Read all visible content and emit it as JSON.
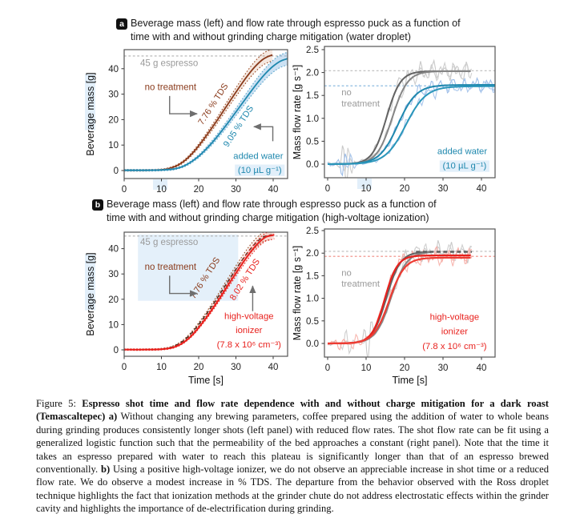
{
  "panel_a": {
    "badge": "a",
    "line1": "Beverage mass (left) and flow rate through espresso puck as a function of",
    "line2": "time with and without grinding charge mitigation (water droplet)"
  },
  "panel_b": {
    "badge": "b",
    "line1": "Beverage mass (left) and flow rate through espresso puck as a function of",
    "line2": "time with and without grinding charge mitigation (high-voltage ionization)"
  },
  "caption": {
    "prefix": "Figure 5: ",
    "bold_a": "Espresso shot time and flow rate dependence with and without charge mitigation for a dark roast (Temascaltepec) a)",
    "text_a": " Without changing any brewing parameters, coffee prepared using the addition of water to whole beans during grinding produces consistently longer shots (left panel) with reduced flow rates. The shot flow rate can be fit using a generalized logistic function such that the permeability of the bed approaches a constant (right panel). Note that the time it takes an espresso prepared with water to reach this plateau is significantly longer than that of an espresso brewed conventionally. ",
    "bold_b": "b)",
    "text_b": " Using a positive high-voltage ionizer, we do not observe an appreciable increase in shot time or a reduced flow rate. We do observe a modest increase in % TDS. The departure from the behavior observed with the Ross droplet technique highlights the fact that ionization methods at the grinder chute do not address electrostatic effects within the grinder cavity and highlights the importance of de-electrification during grinding."
  },
  "colors": {
    "brown": "#8a3b1c",
    "teal": "#1f88ae",
    "red": "#e8211d",
    "gray_fit": "#636363",
    "gray_fit2": "#858585",
    "gray_noise": "#c9c9c9",
    "blue_noise": "#9dbde8",
    "red_noise": "#f6aba4",
    "gray_text": "#9a9a9a",
    "arrow_gray": "#6e6e6e",
    "ref_gray": "#b5b5b5",
    "ref_blue": "#7fb2dc",
    "ref_red": "#f08a80",
    "highlight_blue": "#d6e8f8"
  },
  "chart_data": [
    {
      "key": "beverage_mass_a",
      "type": "line",
      "xlabel": "",
      "ylabel": "Beverage mass [g]",
      "xlim": [
        0,
        43.9
      ],
      "ylim": [
        -3.1,
        47.5
      ],
      "xticks": [
        0,
        10,
        20,
        30,
        40
      ],
      "xtick_labels": [
        "0",
        "10",
        "20",
        "30",
        "40"
      ],
      "yticks": [
        0,
        10,
        20,
        30,
        40
      ],
      "ytick_labels": [
        "0",
        "10",
        "20",
        "30",
        "40"
      ],
      "ref_lines": [
        {
          "y": 45,
          "color": "#b0b0b0"
        }
      ],
      "highlight_rects": [],
      "series": [
        {
          "name": "no treatment (7.76 % TDS)",
          "kind": "band_center",
          "color": "#8a3b1c",
          "width": 1.8,
          "x": [
            0,
            6,
            10,
            12,
            13.5,
            15,
            16.5,
            18,
            19.5,
            21,
            23,
            25,
            27,
            29,
            31,
            33,
            35,
            37,
            38.5,
            39.8
          ],
          "y": [
            0.1,
            0.1,
            0.3,
            0.8,
            1.5,
            2.6,
            4.2,
            6.3,
            8.8,
            11.6,
            15.6,
            19.8,
            24.2,
            28.6,
            32.9,
            37.0,
            40.6,
            43.4,
            44.7,
            45.4
          ],
          "band": {
            "fu": 1.045,
            "fl": 0.955,
            "off": 0.3,
            "fill": "rgba(190,110,60,0.16)",
            "edge": "#9c4a24"
          }
        },
        {
          "name": "added water (9.05 % TDS)",
          "kind": "band_center",
          "color": "#1f88ae",
          "width": 1.8,
          "x": [
            0,
            6,
            10,
            13,
            15,
            16.5,
            18,
            20,
            22,
            24,
            26,
            28,
            30,
            32,
            34,
            36,
            38,
            40,
            42,
            44.6
          ],
          "y": [
            0.1,
            0.1,
            0.2,
            0.5,
            1.2,
            2.1,
            3.4,
            5.6,
            8.4,
            11.6,
            15.2,
            19.0,
            23.0,
            27.0,
            31.0,
            34.8,
            38.2,
            41.0,
            43.0,
            44.3
          ],
          "band": {
            "fu": 1.05,
            "fl": 0.95,
            "off": 0.3,
            "fill": "rgba(110,170,220,0.35)",
            "edge": "#5aa7cc"
          }
        }
      ],
      "annotations": [
        {
          "text": "45 g espresso",
          "x": 4.3,
          "y": 41.0,
          "color": "#9a9a9a",
          "anchor": "start",
          "size": 11.5
        },
        {
          "text": "no treatment",
          "x": 5.5,
          "y": 31.6,
          "color": "#8a3b1c",
          "anchor": "start",
          "size": 11.5
        },
        {
          "text": "7.76 % TDS",
          "x": 24.5,
          "y": 25.5,
          "color": "#8a3b1c",
          "size": 11,
          "rotate": -57
        },
        {
          "text": "9.05 % TDS",
          "x": 31.3,
          "y": 16.8,
          "color": "#1f88ae",
          "size": 11,
          "rotate": -57
        },
        {
          "text": "added water",
          "x": 36.0,
          "y": 4.6,
          "color": "#1f88ae",
          "size": 11.3
        },
        {
          "text": "(10 µL g⁻¹)",
          "x": 36.4,
          "y": -0.9,
          "color": "#1f88ae",
          "size": 11.3,
          "hl": true
        }
      ],
      "arrows": [
        {
          "points": [
            [
              12.2,
              29.3
            ],
            [
              12.2,
              22.3
            ],
            [
              19.6,
              22.3
            ]
          ]
        },
        {
          "points": [
            [
              39.9,
              11.5
            ],
            [
              39.9,
              17.2
            ],
            [
              34.8,
              17.2
            ]
          ]
        }
      ]
    },
    {
      "key": "flow_rate_a",
      "type": "line",
      "xlabel": "",
      "ylabel": "Mass flow rate [g s⁻¹]",
      "xlim": [
        0,
        43.5
      ],
      "ylim": [
        -0.3,
        2.57
      ],
      "xticks": [
        0,
        10,
        20,
        30,
        40
      ],
      "xtick_labels": [
        "0",
        "10",
        "20",
        "30",
        "40"
      ],
      "yticks": [
        0,
        0.5,
        1,
        1.5,
        2,
        2.5
      ],
      "ytick_labels": [
        "0.0",
        "0.5",
        "1.0",
        "1.5",
        "2.0",
        "2.5"
      ],
      "ref_lines": [
        {
          "y": 2.04,
          "color": "#bbbbbb"
        },
        {
          "y": 1.71,
          "color": "#7fb2dc"
        }
      ],
      "highlight_rects": [],
      "series": [
        {
          "name": "no treatment raw 1",
          "kind": "noisy",
          "L": 2.03,
          "k": 0.55,
          "t0": 15.3,
          "tmax": 37.5,
          "seed": 1,
          "amp": 0.19,
          "bump": {
            "t": 4.5,
            "a": 0.5
          },
          "color": "#c9c9c9",
          "width": 1.1
        },
        {
          "name": "no treatment raw 2",
          "kind": "noisy",
          "L": 2.03,
          "k": 0.5,
          "t0": 16.8,
          "tmax": 37.5,
          "seed": 2,
          "amp": 0.17,
          "bump": {
            "t": 5.5,
            "a": 0.35
          },
          "color": "#cfcfcf",
          "width": 1.1
        },
        {
          "name": "added water raw 1",
          "kind": "noisy",
          "L": 1.73,
          "k": 0.42,
          "t0": 18.3,
          "tmax": 44,
          "seed": 3,
          "amp": 0.13,
          "bump": {
            "t": 4,
            "a": 0.3
          },
          "color": "#9dbde8",
          "width": 1.1
        },
        {
          "name": "added water raw 2",
          "kind": "noisy",
          "L": 1.7,
          "k": 0.38,
          "t0": 20.3,
          "tmax": 44,
          "seed": 4,
          "amp": 0.12,
          "bump": {
            "t": 6,
            "a": 0.2
          },
          "color": "#aac7ec",
          "width": 1.1
        },
        {
          "name": "no treatment fit 1",
          "kind": "logistic",
          "L": 2.03,
          "k": 0.55,
          "t0": 15.3,
          "tmax": 37.5,
          "color": "#636363",
          "width": 2
        },
        {
          "name": "no treatment fit 2",
          "kind": "logistic",
          "L": 2.03,
          "k": 0.5,
          "t0": 16.8,
          "tmax": 37.5,
          "color": "#858585",
          "width": 2
        },
        {
          "name": "added water fit 1",
          "kind": "logistic",
          "L": 1.73,
          "k": 0.42,
          "t0": 18.3,
          "tmax": 44,
          "color": "#1f88ae",
          "width": 2
        },
        {
          "name": "added water fit 2",
          "kind": "logistic",
          "L": 1.7,
          "k": 0.38,
          "t0": 20.3,
          "tmax": 44,
          "color": "#2a96ba",
          "width": 2
        }
      ],
      "annotations": [
        {
          "text": "no",
          "x": 3.6,
          "y": 1.5,
          "color": "#9a9a9a",
          "anchor": "start",
          "size": 11.3
        },
        {
          "text": "treatment",
          "x": 3.6,
          "y": 1.26,
          "color": "#9a9a9a",
          "anchor": "start",
          "size": 11.3
        },
        {
          "text": "added water",
          "x": 35.0,
          "y": 0.22,
          "color": "#1f88ae",
          "size": 11.3
        },
        {
          "text": "(10 µL g⁻¹)",
          "x": 35.6,
          "y": -0.1,
          "color": "#1f88ae",
          "size": 11.3,
          "hl": true
        }
      ],
      "arrows": []
    },
    {
      "key": "beverage_mass_b",
      "type": "line",
      "xlabel": "Time [s]",
      "ylabel": "Beverage mass [g]",
      "xlim": [
        0,
        43.9
      ],
      "ylim": [
        -3.1,
        46.5
      ],
      "xticks": [
        0,
        10,
        20,
        30,
        40
      ],
      "xtick_labels": [
        "0",
        "10",
        "20",
        "30",
        "40"
      ],
      "yticks": [
        0,
        10,
        20,
        30,
        40
      ],
      "ytick_labels": [
        "0",
        "10",
        "20",
        "30",
        "40"
      ],
      "ref_lines": [
        {
          "y": 45,
          "color": "#b0b0b0"
        }
      ],
      "highlight_rects": [
        {
          "x1": 3.7,
          "y1": 19.4,
          "x2": 30.6,
          "y2": 45.6,
          "color": "#d6e8f8",
          "opacity": 0.65
        }
      ],
      "series": [
        {
          "name": "no treatment reference (7.76 % TDS)",
          "kind": "band_center",
          "color": "#4a2c20",
          "width": 1.5,
          "dash": "5,3",
          "x": [
            0,
            5.3,
            9.3,
            11.8,
            13.3,
            14.8,
            16.3,
            17.8,
            19.3,
            21.3,
            23.3,
            25.3,
            27.3,
            29.3,
            31.3,
            33.3,
            35.3,
            37.3,
            38.8,
            39.6
          ],
          "y": [
            0.1,
            0.1,
            0.25,
            0.7,
            1.4,
            2.5,
            4.1,
            6.2,
            8.8,
            12.6,
            16.8,
            21.2,
            25.8,
            30.3,
            34.7,
            38.8,
            42.2,
            44.6,
            45.2,
            45.5
          ],
          "band": {
            "fu": 1.035,
            "fl": 0.965,
            "off": 0.25,
            "fill": "rgba(190,110,60,0.10)",
            "edge": "#9c4a24"
          }
        },
        {
          "name": "high-voltage ionizer (8.02 % TDS)",
          "kind": "band_center",
          "color": "#e8211d",
          "width": 2,
          "x": [
            0,
            6,
            10,
            12.5,
            14,
            15.5,
            17,
            18.5,
            20,
            22,
            24,
            26,
            28,
            30,
            32,
            34,
            36,
            38,
            39.5,
            40.3
          ],
          "y": [
            0.1,
            0.1,
            0.25,
            0.7,
            1.4,
            2.5,
            4.1,
            6.2,
            8.8,
            12.6,
            16.8,
            21.2,
            25.8,
            30.3,
            34.7,
            38.8,
            42.2,
            44.6,
            45.2,
            45.5
          ],
          "band": {
            "fu": 1.03,
            "fl": 0.97,
            "off": 0.25,
            "fill": "rgba(240,90,80,0.18)",
            "edge": "#e8211d"
          }
        }
      ],
      "annotations": [
        {
          "text": "45 g espresso",
          "x": 4.3,
          "y": 41.5,
          "color": "#9a9a9a",
          "anchor": "start",
          "size": 11.5
        },
        {
          "text": "no treatment",
          "x": 5.5,
          "y": 31.6,
          "color": "#8a3b1c",
          "anchor": "start",
          "size": 11.5
        },
        {
          "text": "7.76 % TDS",
          "x": 22.3,
          "y": 27.8,
          "color": "#8a3b1c",
          "size": 11,
          "rotate": -57
        },
        {
          "text": "8.02 % TDS",
          "x": 33.0,
          "y": 27.2,
          "color": "#e8211d",
          "size": 11,
          "rotate": -57
        },
        {
          "text": "high-voltage",
          "x": 33.5,
          "y": 12.2,
          "color": "#e8211d",
          "size": 11.3
        },
        {
          "text": "ionizer",
          "x": 33.5,
          "y": 6.6,
          "color": "#e8211d",
          "size": 11.3
        },
        {
          "text": "(7.8 x 10⁶ cm⁻³)",
          "x": 33.5,
          "y": 0.9,
          "color": "#e8211d",
          "size": 11.3
        }
      ],
      "arrows": [
        {
          "points": [
            [
              12.2,
              29.3
            ],
            [
              12.2,
              22.3
            ],
            [
              19.6,
              22.3
            ]
          ]
        },
        {
          "points": [
            [
              34.5,
              15.3
            ],
            [
              34.5,
              25.3
            ]
          ]
        }
      ]
    },
    {
      "key": "flow_rate_b",
      "type": "line",
      "xlabel": "Time [s]",
      "ylabel": "Mass flow rate [g s⁻¹]",
      "xlim": [
        0,
        43.5
      ],
      "ylim": [
        -0.3,
        2.53
      ],
      "xticks": [
        0,
        10,
        20,
        30,
        40
      ],
      "xtick_labels": [
        "0",
        "10",
        "20",
        "30",
        "40"
      ],
      "yticks": [
        0,
        0.5,
        1,
        1.5,
        2,
        2.5
      ],
      "ytick_labels": [
        "0.0",
        "0.5",
        "1.0",
        "1.5",
        "2.0",
        "2.5"
      ],
      "ref_lines": [
        {
          "y": 2.04,
          "color": "#bbbbbb"
        },
        {
          "y": 1.93,
          "color": "#f08a80"
        }
      ],
      "highlight_rects": [],
      "series": [
        {
          "name": "no treatment raw 1",
          "kind": "noisy",
          "L": 2.03,
          "k": 0.55,
          "t0": 15.3,
          "tmax": 37.5,
          "seed": 5,
          "amp": 0.18,
          "bump": {
            "t": 10.5,
            "a": 0.55
          },
          "color": "#c9c9c9",
          "width": 1.1
        },
        {
          "name": "no treatment raw 2",
          "kind": "noisy",
          "L": 2.03,
          "k": 0.5,
          "t0": 16.5,
          "tmax": 37.5,
          "seed": 6,
          "amp": 0.16,
          "bump": {
            "t": 5,
            "a": 0.3
          },
          "color": "#cfcfcf",
          "width": 1.1
        },
        {
          "name": "ionizer raw 1",
          "kind": "noisy",
          "L": 1.95,
          "k": 0.6,
          "t0": 14.8,
          "tmax": 37.5,
          "seed": 7,
          "amp": 0.15,
          "bump": {
            "t": 3,
            "a": 0.15
          },
          "color": "#f6aba4",
          "width": 1.1
        },
        {
          "name": "ionizer raw 2",
          "kind": "noisy",
          "L": 1.91,
          "k": 0.5,
          "t0": 16.0,
          "tmax": 37.5,
          "seed": 8,
          "amp": 0.14,
          "bump": {
            "t": 7,
            "a": 0.2
          },
          "color": "#f8b7b0",
          "width": 1.1
        },
        {
          "name": "no treatment fit 1",
          "kind": "logistic",
          "L": 2.03,
          "k": 0.55,
          "t0": 15.3,
          "tmax": 27,
          "color": "#636363",
          "width": 2
        },
        {
          "name": "no treatment fit 2",
          "kind": "logistic",
          "L": 2.03,
          "k": 0.5,
          "t0": 16.5,
          "tmax": 27,
          "color": "#858585",
          "width": 2
        },
        {
          "name": "no treatment plateau",
          "kind": "segment",
          "x": [
            23,
            37.5
          ],
          "y": [
            2.03,
            2.03
          ],
          "color": "#5f5f5f",
          "width": 2.6,
          "dash": "5,3.5"
        },
        {
          "name": "ionizer fit 1",
          "kind": "logistic",
          "L": 1.95,
          "k": 0.6,
          "t0": 14.8,
          "tmax": 37.5,
          "color": "#e8211d",
          "width": 2.2
        },
        {
          "name": "ionizer fit 2",
          "kind": "logistic",
          "L": 1.9,
          "k": 0.5,
          "t0": 16.0,
          "tmax": 37.5,
          "color": "#ee3b32",
          "width": 2.2
        }
      ],
      "annotations": [
        {
          "text": "no",
          "x": 3.6,
          "y": 1.5,
          "color": "#9a9a9a",
          "anchor": "start",
          "size": 11.3
        },
        {
          "text": "treatment",
          "x": 3.6,
          "y": 1.26,
          "color": "#9a9a9a",
          "anchor": "start",
          "size": 11.3
        },
        {
          "text": "high-voltage",
          "x": 33.0,
          "y": 0.52,
          "color": "#e8211d",
          "size": 11.3
        },
        {
          "text": "ionizer",
          "x": 33.0,
          "y": 0.2,
          "color": "#e8211d",
          "size": 11.3
        },
        {
          "text": "(7.8 x 10⁶ cm⁻³)",
          "x": 33.0,
          "y": -0.12,
          "color": "#e8211d",
          "size": 11.3
        }
      ],
      "arrows": []
    }
  ]
}
